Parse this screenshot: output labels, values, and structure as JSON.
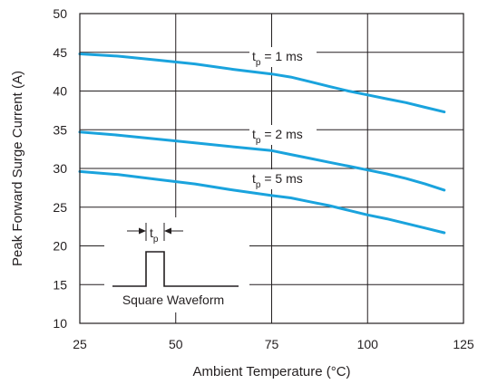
{
  "chart_data": {
    "type": "line",
    "title": "",
    "xlabel": "Ambient Temperature (°C)",
    "ylabel": "Peak Forward Surge Current (A)",
    "xlim": [
      25,
      125
    ],
    "ylim": [
      10,
      50
    ],
    "xticks": [
      25,
      50,
      75,
      100,
      125
    ],
    "yticks": [
      10,
      15,
      20,
      25,
      30,
      35,
      40,
      45,
      50
    ],
    "grid": true,
    "line_color": "#1aa3dd",
    "series": [
      {
        "name": "tp = 1 ms",
        "label_main": "t",
        "label_sub": "p",
        "label_rest": " = 1 ms",
        "x": [
          25,
          35,
          45,
          55,
          65,
          75,
          80,
          85,
          90,
          95,
          100,
          105,
          110,
          115,
          120
        ],
        "y": [
          44.8,
          44.5,
          44.0,
          43.5,
          42.8,
          42.2,
          41.8,
          41.2,
          40.6,
          40.0,
          39.5,
          39.0,
          38.5,
          37.9,
          37.3
        ]
      },
      {
        "name": "tp = 2 ms",
        "label_main": "t",
        "label_sub": "p",
        "label_rest": " = 2 ms",
        "x": [
          25,
          35,
          45,
          55,
          65,
          75,
          80,
          85,
          90,
          95,
          100,
          105,
          110,
          115,
          120
        ],
        "y": [
          34.7,
          34.3,
          33.8,
          33.3,
          32.8,
          32.3,
          31.8,
          31.3,
          30.8,
          30.3,
          29.8,
          29.3,
          28.7,
          28.0,
          27.2
        ]
      },
      {
        "name": "tp = 5 ms",
        "label_main": "t",
        "label_sub": "p",
        "label_rest": " = 5 ms",
        "x": [
          25,
          35,
          45,
          55,
          65,
          75,
          80,
          85,
          90,
          95,
          100,
          105,
          110,
          115,
          120
        ],
        "y": [
          29.6,
          29.2,
          28.6,
          28.0,
          27.2,
          26.5,
          26.2,
          25.7,
          25.2,
          24.6,
          24.0,
          23.5,
          22.9,
          22.3,
          21.7
        ]
      }
    ],
    "inset": {
      "caption": "Square Waveform",
      "pulse_label_main": "t",
      "pulse_label_sub": "p"
    }
  }
}
